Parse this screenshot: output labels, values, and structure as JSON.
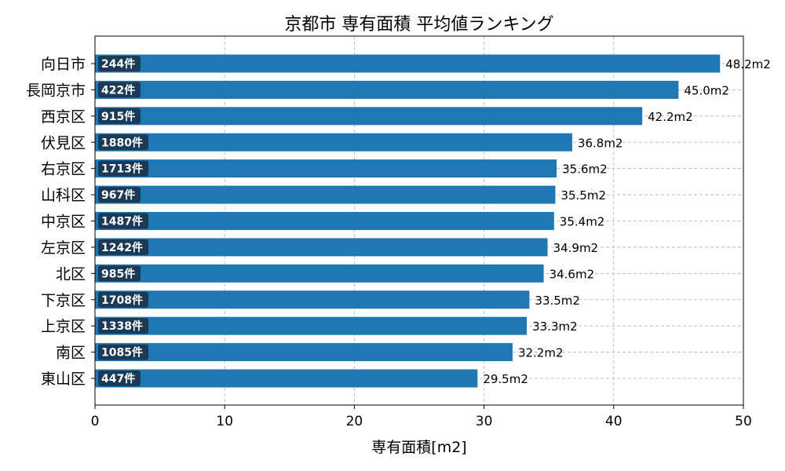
{
  "chart_data": {
    "type": "bar",
    "orientation": "horizontal",
    "title": "京都市 専有面積 平均値ランキング",
    "xlabel": "専有面積[m2]",
    "ylabel": "",
    "xlim": [
      0,
      50
    ],
    "xticks": [
      0,
      10,
      20,
      30,
      40,
      50
    ],
    "grid": true,
    "bar_color": "#1f77b4",
    "badge_color": "#1a3a55",
    "categories": [
      "向日市",
      "長岡京市",
      "西京区",
      "伏見区",
      "右京区",
      "山科区",
      "中京区",
      "左京区",
      "北区",
      "下京区",
      "上京区",
      "南区",
      "東山区"
    ],
    "values": [
      48.2,
      45.0,
      42.2,
      36.8,
      35.6,
      35.5,
      35.4,
      34.9,
      34.6,
      33.5,
      33.3,
      32.2,
      29.5
    ],
    "value_labels": [
      "48.2m2",
      "45.0m2",
      "42.2m2",
      "36.8m2",
      "35.6m2",
      "35.5m2",
      "35.4m2",
      "34.9m2",
      "34.6m2",
      "33.5m2",
      "33.3m2",
      "32.2m2",
      "29.5m2"
    ],
    "counts": [
      "244件",
      "422件",
      "915件",
      "1880件",
      "1713件",
      "967件",
      "1487件",
      "1242件",
      "985件",
      "1708件",
      "1338件",
      "1085件",
      "447件"
    ]
  }
}
